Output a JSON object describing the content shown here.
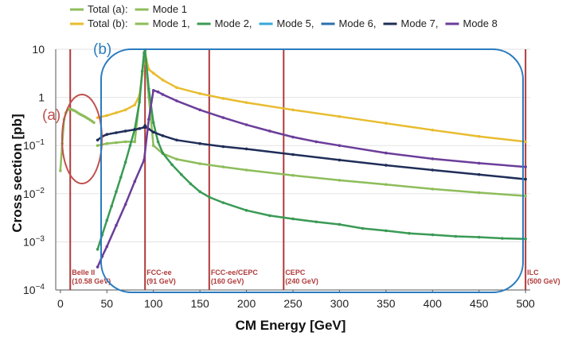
{
  "chart_data": {
    "type": "line",
    "xlabel": "CM Energy [GeV]",
    "ylabel": "Cross section [pb]",
    "xlim": [
      -5,
      505
    ],
    "ylim": [
      0.0001,
      10
    ],
    "yscale": "log",
    "xticks": [
      "0",
      "50",
      "100",
      "150",
      "200",
      "250",
      "300",
      "350",
      "400",
      "450",
      "500"
    ],
    "xtick_values": [
      0,
      50,
      100,
      150,
      200,
      250,
      300,
      350,
      400,
      450,
      500
    ],
    "yticks": [
      {
        "v": 10,
        "b": "10",
        "e": ""
      },
      {
        "v": 1,
        "b": "1",
        "e": ""
      },
      {
        "v": 0.1,
        "b": "10",
        "e": "−1"
      },
      {
        "v": 0.01,
        "b": "10",
        "e": "−2"
      },
      {
        "v": 0.001,
        "b": "10",
        "e": "−3"
      },
      {
        "v": 0.0001,
        "b": "10",
        "e": "−4"
      }
    ],
    "legend": {
      "row1_prefix": "Total (a):",
      "row2_prefix": "Total (b):",
      "entries_a": [
        {
          "label": "Mode 1",
          "color": "#8dbd5a"
        }
      ],
      "entries_b": [
        {
          "label": "Mode 1,",
          "color": "#8dbd5a"
        },
        {
          "label": "Mode 2,",
          "color": "#3a9a55"
        },
        {
          "label": "Mode 5,",
          "color": "#35a8d8"
        },
        {
          "label": "Mode 6,",
          "color": "#2b6fad"
        },
        {
          "label": "Mode 7,",
          "color": "#1f2d58"
        },
        {
          "label": "Mode 8",
          "color": "#6b3d9a"
        }
      ]
    },
    "totals_colors": {
      "a": "#8dbd5a",
      "b": "#e8bc2e"
    },
    "region_labels": [
      {
        "text": "(a)",
        "color": "#c0504d"
      },
      {
        "text": "(b)",
        "color": "#2a7bbf"
      }
    ],
    "vlines": [
      {
        "x": 10.58,
        "line1": "Belle II",
        "line2": "(10.58 GeV)"
      },
      {
        "x": 91,
        "line1": "FCC-ee",
        "line2": "(91 GeV)"
      },
      {
        "x": 160,
        "line1": "FCC-ee/CEPC",
        "line2": "(160 GeV)"
      },
      {
        "x": 240,
        "line1": "CEPC",
        "line2": "(240 GeV)"
      },
      {
        "x": 500,
        "line1": "ILC",
        "line2": "(500 GeV)"
      }
    ],
    "vline_color": "#b03a3a",
    "series": [
      {
        "color": "#8dbd5a",
        "x": [
          0,
          2,
          4,
          6,
          8,
          10,
          12,
          14,
          16,
          18,
          20,
          22,
          24,
          26,
          28,
          30,
          32,
          34,
          36
        ],
        "y": [
          0.03,
          0.11,
          0.35,
          0.48,
          0.55,
          0.57,
          0.56,
          0.54,
          0.52,
          0.49,
          0.46,
          0.44,
          0.42,
          0.4,
          0.38,
          0.36,
          0.34,
          0.32,
          0.3
        ]
      },
      {
        "color": "#e8bc2e",
        "x": [
          40,
          50,
          60,
          70,
          80,
          85,
          88,
          90,
          91,
          92,
          95,
          100,
          110,
          125,
          150,
          175,
          200,
          250,
          300,
          350,
          400,
          450,
          500
        ],
        "y": [
          0.38,
          0.42,
          0.48,
          0.55,
          0.7,
          1.1,
          3.0,
          7.0,
          9.8,
          6.5,
          3.8,
          3.2,
          2.3,
          1.6,
          1.2,
          0.95,
          0.78,
          0.55,
          0.4,
          0.29,
          0.21,
          0.155,
          0.12
        ]
      },
      {
        "color": "#8dbd5a",
        "x": [
          40,
          50,
          60,
          70,
          80,
          85,
          88,
          90,
          91,
          92,
          95,
          100,
          110,
          125,
          150,
          175,
          200,
          250,
          300,
          350,
          400,
          450,
          500
        ],
        "y": [
          0.1,
          0.11,
          0.115,
          0.12,
          0.12,
          0.9,
          3.5,
          8.0,
          9.6,
          5.0,
          1.0,
          0.1,
          0.068,
          0.052,
          0.042,
          0.036,
          0.031,
          0.024,
          0.019,
          0.0155,
          0.0125,
          0.0105,
          0.009
        ]
      },
      {
        "color": "#3a9a55",
        "x": [
          40,
          45,
          50,
          55,
          60,
          65,
          70,
          75,
          80,
          85,
          88,
          90,
          91,
          92,
          95,
          100,
          105,
          110,
          120,
          130,
          140,
          150,
          160,
          175,
          200,
          225,
          250,
          275,
          300,
          325,
          350,
          375,
          400,
          425,
          450,
          475,
          500
        ],
        "y": [
          0.0007,
          0.0014,
          0.0028,
          0.0055,
          0.011,
          0.022,
          0.045,
          0.1,
          0.22,
          0.8,
          3.5,
          8.5,
          9.6,
          6.0,
          1.5,
          0.3,
          0.12,
          0.07,
          0.04,
          0.025,
          0.016,
          0.011,
          0.0085,
          0.0065,
          0.0045,
          0.0035,
          0.003,
          0.0026,
          0.0023,
          0.0019,
          0.0017,
          0.0015,
          0.0014,
          0.0013,
          0.00125,
          0.00118,
          0.00115
        ]
      },
      {
        "color": "#1f2d58",
        "x": [
          40,
          45,
          50,
          60,
          70,
          80,
          85,
          90,
          91,
          92,
          95,
          100,
          110,
          125,
          150,
          175,
          200,
          250,
          300,
          350,
          400,
          450,
          500
        ],
        "y": [
          0.13,
          0.155,
          0.17,
          0.185,
          0.2,
          0.215,
          0.225,
          0.24,
          0.26,
          0.24,
          0.22,
          0.19,
          0.16,
          0.13,
          0.11,
          0.095,
          0.085,
          0.065,
          0.05,
          0.039,
          0.031,
          0.025,
          0.02
        ]
      },
      {
        "color": "#6b3d9a",
        "x": [
          40,
          45,
          50,
          60,
          70,
          80,
          90,
          95,
          100,
          105,
          110,
          125,
          150,
          175,
          200,
          225,
          250,
          275,
          300,
          350,
          400,
          450,
          500
        ],
        "y": [
          0.0003,
          0.0005,
          0.0008,
          0.0022,
          0.006,
          0.018,
          0.05,
          0.35,
          1.4,
          1.3,
          1.15,
          0.85,
          0.55,
          0.38,
          0.27,
          0.2,
          0.15,
          0.12,
          0.1,
          0.07,
          0.053,
          0.043,
          0.036
        ]
      }
    ]
  }
}
